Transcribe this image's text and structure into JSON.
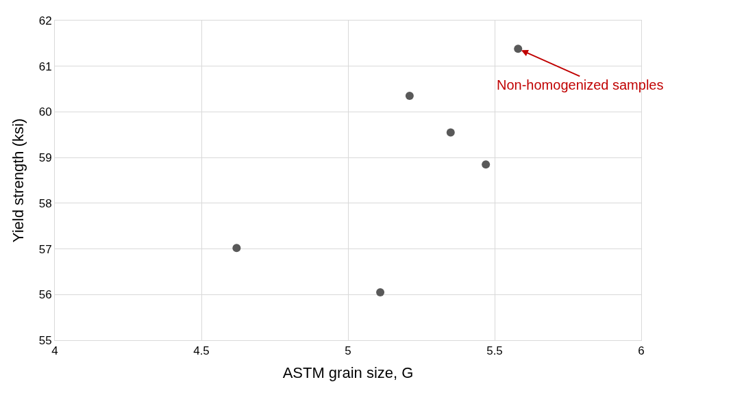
{
  "chart_data": {
    "type": "scatter",
    "xlabel": "ASTM grain size, G",
    "ylabel": "Yield strength (ksi)",
    "x": [
      4.62,
      5.11,
      5.21,
      5.35,
      5.47,
      5.58
    ],
    "series": [
      {
        "color": "#595959",
        "values": [
          57.02,
          56.05,
          60.35,
          59.55,
          58.85,
          61.38
        ]
      }
    ],
    "xlim": [
      4,
      6
    ],
    "xticks": [
      4,
      4.5,
      5,
      5.5,
      6
    ],
    "ylim": [
      55,
      62
    ],
    "yticks": [
      55,
      56,
      57,
      58,
      59,
      60,
      61,
      62
    ],
    "grid": true,
    "marker": "circle",
    "annotations": [
      {
        "text": "Non-homogenized samples",
        "x": 5.58,
        "y": 61.38
      }
    ]
  }
}
